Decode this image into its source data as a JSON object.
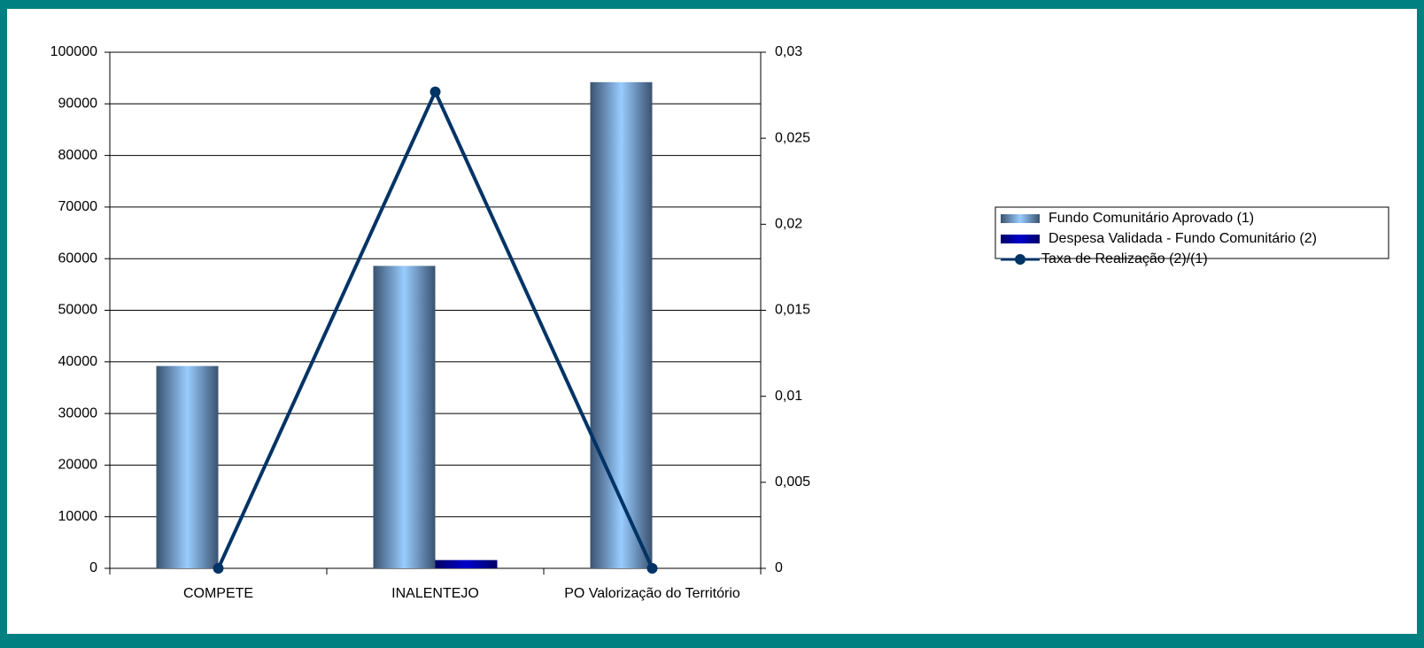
{
  "chart_data": {
    "type": "bar_line",
    "categories": [
      "COMPETE",
      "INALENTEJO",
      "PO Valorização do Território"
    ],
    "series": [
      {
        "name": "Fundo Comunitário Aprovado (1)",
        "color": "#99ccff",
        "values": [
          39200,
          58600,
          94200
        ]
      },
      {
        "name": "Despesa Validada - Fundo Comunitário (2)",
        "color": "#0000cc",
        "values": [
          0,
          1600,
          0
        ]
      },
      {
        "name": "Taxa de Realização (2)/(1)",
        "color": "#003366",
        "type": "line",
        "axis": "y2",
        "values": [
          0,
          0.0277,
          0
        ]
      }
    ],
    "ylim": [
      0,
      100000
    ],
    "yticks": [
      0,
      10000,
      20000,
      30000,
      40000,
      50000,
      60000,
      70000,
      80000,
      90000,
      100000
    ],
    "y2lim": [
      0,
      0.03
    ],
    "y2ticks": [
      0,
      {
        "value": 0.005,
        "label": "0,005"
      },
      {
        "value": 0.01,
        "label": "0,01"
      },
      {
        "value": 0.015,
        "label": "0,015"
      },
      {
        "value": 0.02,
        "label": "0,02"
      },
      {
        "value": 0.025,
        "label": "0,025"
      },
      {
        "value": 0.03,
        "label": "0,03"
      }
    ],
    "grid": true,
    "legend": "right"
  }
}
